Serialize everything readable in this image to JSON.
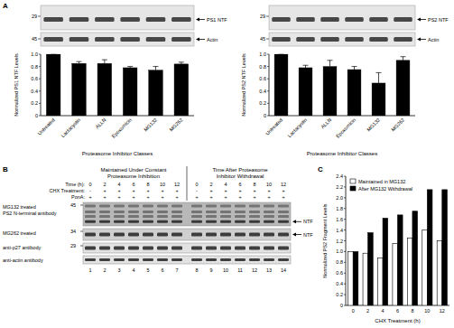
{
  "chart_data": [
    {
      "type": "bar",
      "y_label": "Normalized PS1 NTF Levels",
      "x_label": "Proteasome Inhibitor Classes",
      "categories": [
        "Untreated",
        "Lactacystin",
        "ALLN",
        "Epoxomicin",
        "MG132",
        "MG262"
      ],
      "values": [
        1.0,
        0.85,
        0.85,
        0.78,
        0.74,
        0.84
      ],
      "errors": [
        0,
        0.03,
        0.06,
        0.02,
        0.06,
        0.03
      ],
      "color": "#000000",
      "ylim": [
        0,
        1
      ],
      "yticks": [
        0,
        0.2,
        0.4,
        0.6,
        0.8,
        {
          "value": 1,
          "label": "1.0"
        }
      ]
    },
    {
      "type": "bar",
      "y_label": "Normalized PS2 NTF Levels",
      "x_label": "Proteasome Inhibitor Classes",
      "categories": [
        "Untreated",
        "Lactacystin",
        "ALLN",
        "Epoxomicin",
        "MG132",
        "MG262"
      ],
      "values": [
        1.0,
        0.78,
        0.8,
        0.75,
        0.53,
        0.9
      ],
      "errors": [
        0,
        0.04,
        0.1,
        0.05,
        0.17,
        0.06
      ],
      "color": "#000000",
      "ylim": [
        0,
        1
      ],
      "yticks": [
        0,
        0.2,
        0.4,
        0.6,
        0.8,
        {
          "value": 1,
          "label": "1.0"
        }
      ]
    },
    {
      "type": "bar",
      "y_label": "Normalized PS2 Fragment Levels",
      "x_label": "CHX Treatment (h)",
      "categories": [
        "0",
        "2",
        "4",
        "6",
        "8",
        "10",
        "12"
      ],
      "series": [
        {
          "name": "Maintained in MG132",
          "color": "#ffffff",
          "values": [
            1.0,
            0.97,
            0.88,
            1.15,
            1.25,
            1.4,
            1.2
          ]
        },
        {
          "name": "After MG132 Withdrawal",
          "color": "#000000",
          "values": [
            1.0,
            1.35,
            1.62,
            1.68,
            1.75,
            2.15,
            2.15
          ]
        }
      ],
      "legend": "upper left",
      "ylim": [
        0,
        2.4
      ],
      "yticks": [
        0,
        0.2,
        0.4,
        0.6,
        0.8,
        {
          "value": 1,
          "label": "1.0"
        },
        1.2,
        1.4,
        1.6,
        1.8,
        {
          "value": 2,
          "label": "2.0"
        },
        2.2,
        2.4
      ]
    }
  ],
  "panel_labels": [
    "A",
    "B",
    "C"
  ],
  "blots_a": [
    {
      "rows": [
        {
          "marker": 29,
          "label": "PS1 NTF"
        },
        {
          "marker": 45,
          "label": "Actin"
        }
      ]
    },
    {
      "rows": [
        {
          "marker": 29,
          "label": "PS2 NTF"
        },
        {
          "marker": 45,
          "label": "Actin"
        }
      ]
    }
  ],
  "blot_b": {
    "headers": [
      [
        "Maintained Under Constant",
        "Proteasome Inhibition"
      ],
      [
        "Time After Proteasome",
        "Inhibitor Withdrawal"
      ]
    ],
    "rows": [
      {
        "label": "Time (h):",
        "values": [
          0,
          2,
          4,
          6,
          8,
          10,
          12,
          0,
          2,
          4,
          6,
          8,
          10,
          12
        ]
      },
      {
        "label": "CHX Treatment:",
        "values": [
          "-",
          "+",
          "+",
          "+",
          "+",
          "+",
          "+",
          "-",
          "+",
          "+",
          "+",
          "+",
          "+",
          "+"
        ]
      },
      {
        "label": "PonA:",
        "values": [
          "+",
          "+",
          "+",
          "+",
          "+",
          "+",
          "+",
          "+",
          "+",
          "+",
          "+",
          "+",
          "+",
          "+"
        ]
      }
    ],
    "blots": [
      {
        "label": [
          "MG132 treated",
          "PS2 N-terminal antibody"
        ],
        "marker": 45,
        "arrow": "NTF"
      },
      {
        "label": [
          "MG262 treated"
        ],
        "marker": 34,
        "arrow": "NTF"
      },
      {
        "label": [
          "anti-p27 antibody"
        ],
        "marker": 29
      },
      {
        "label": [
          "anti-actin antibody"
        ]
      }
    ],
    "lanes": [
      1,
      2,
      3,
      4,
      5,
      6,
      7,
      8,
      9,
      10,
      11,
      12,
      13,
      14
    ]
  }
}
